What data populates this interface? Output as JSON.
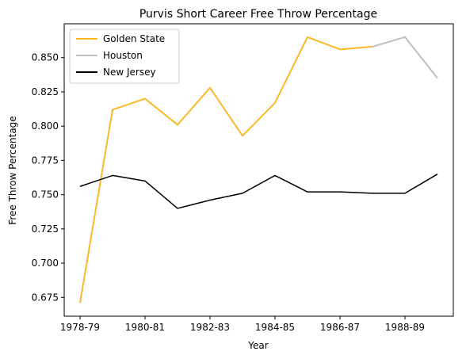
{
  "chart_data": {
    "type": "line",
    "title": "Purvis Short Career Free Throw Percentage",
    "xlabel": "Year",
    "ylabel": "Free Throw Percentage",
    "x": [
      "1978-79",
      "1979-80",
      "1980-81",
      "1981-82",
      "1982-83",
      "1983-84",
      "1984-85",
      "1985-86",
      "1986-87",
      "1987-88",
      "1988-89",
      "1989-90"
    ],
    "xtick_labels": [
      "1978-79",
      "1980-81",
      "1982-83",
      "1984-85",
      "1986-87",
      "1988-89"
    ],
    "ylim": [
      0.663,
      0.673
    ],
    "yticks": [
      0.675,
      0.7,
      0.725,
      0.75,
      0.775,
      0.8,
      0.825,
      0.85
    ],
    "ytick_labels": [
      "0.675",
      "0.700",
      "0.725",
      "0.750",
      "0.775",
      "0.800",
      "0.825",
      "0.850"
    ],
    "grid": false,
    "legend_position": "upper-left",
    "series": [
      {
        "name": "Golden State",
        "color": "#fbb829",
        "x": [
          "1978-79",
          "1979-80",
          "1980-81",
          "1981-82",
          "1982-83",
          "1983-84",
          "1984-85",
          "1985-86",
          "1986-87",
          "1987-88"
        ],
        "values": [
          0.671,
          0.812,
          0.82,
          0.801,
          0.828,
          0.793,
          0.817,
          0.865,
          0.856,
          0.858
        ]
      },
      {
        "name": "Houston",
        "color": "#bfbfbf",
        "x": [
          "1987-88",
          "1988-89",
          "1989-90"
        ],
        "values": [
          0.858,
          0.865,
          0.835
        ]
      },
      {
        "name": "New Jersey",
        "color": "#000000",
        "x": [
          "1978-79",
          "1979-80",
          "1980-81",
          "1981-82",
          "1982-83",
          "1983-84",
          "1984-85",
          "1985-86",
          "1986-87",
          "1987-88",
          "1988-89",
          "1989-90"
        ],
        "values": [
          0.756,
          0.764,
          0.76,
          0.74,
          0.746,
          0.751,
          0.764,
          0.752,
          0.752,
          0.751,
          0.751,
          0.765
        ]
      }
    ]
  }
}
